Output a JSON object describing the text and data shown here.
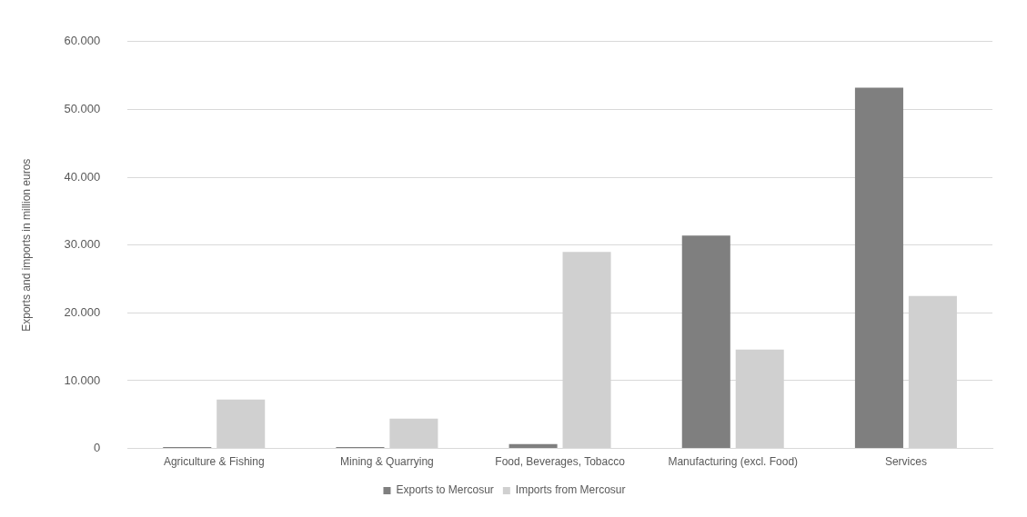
{
  "chart_data": {
    "type": "bar",
    "ylabel": "Exports and imports in million euros",
    "categories": [
      "Agriculture & Fishing",
      "Mining & Quarrying",
      "Food, Beverages, Tobacco",
      "Manufacturing (excl. Food)",
      "Services"
    ],
    "series": [
      {
        "name": "Exports to Mercosur",
        "color": "#7f7f7f",
        "values": [
          200,
          200,
          650,
          31400,
          53200
        ]
      },
      {
        "name": "Imports from Mercosur",
        "color": "#d0d0d0",
        "values": [
          7200,
          4400,
          29000,
          14600,
          22500
        ]
      }
    ],
    "ylim": [
      0,
      60000
    ],
    "yticks": [
      0,
      {
        "value": 10000,
        "label": "10.000"
      },
      {
        "value": 20000,
        "label": "20.000"
      },
      {
        "value": 30000,
        "label": "30.000"
      },
      {
        "value": 40000,
        "label": "40.000"
      },
      {
        "value": 50000,
        "label": "50.000"
      },
      {
        "value": 60000,
        "label": "60.000"
      }
    ],
    "grid": "y",
    "legend": "bottom"
  }
}
